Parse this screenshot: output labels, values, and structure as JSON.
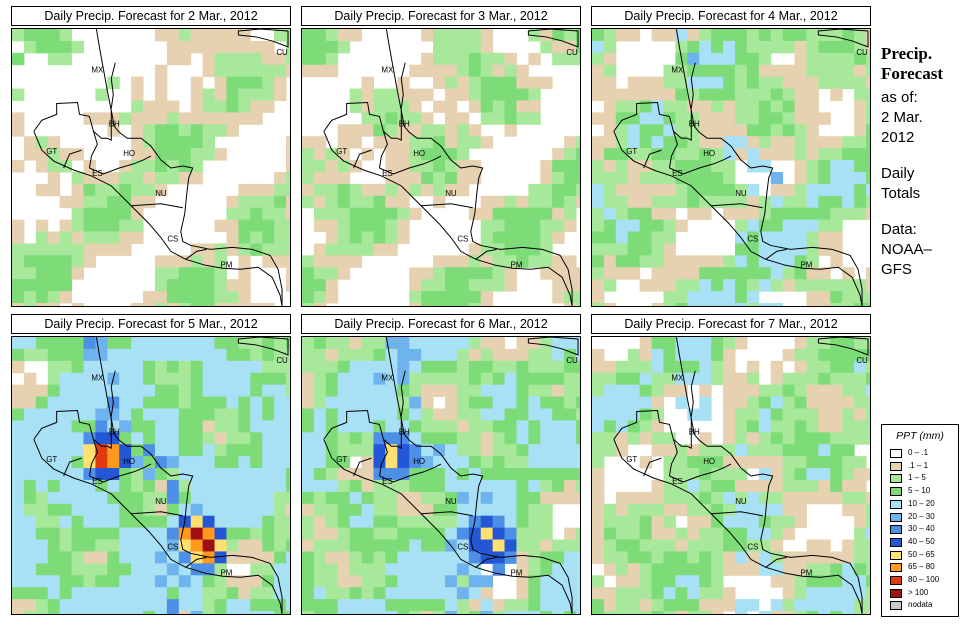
{
  "panels": [
    {
      "title": "Daily Precip. Forecast for  2 Mar., 2012",
      "wet": 0.0
    },
    {
      "title": "Daily Precip. Forecast for  3 Mar., 2012",
      "wet": 0.05
    },
    {
      "title": "Daily Precip. Forecast for  4 Mar., 2012",
      "wet": 0.35
    },
    {
      "title": "Daily Precip. Forecast for  5 Mar., 2012",
      "wet": 0.9
    },
    {
      "title": "Daily Precip. Forecast for  6 Mar., 2012",
      "wet": 0.65
    },
    {
      "title": "Daily Precip. Forecast for  7 Mar., 2012",
      "wet": 0.3
    }
  ],
  "country_labels": [
    "MX",
    "BH",
    "GT",
    "HO",
    "ES",
    "NU",
    "CS",
    "PM",
    "CU"
  ],
  "sidebar": {
    "title": "Precip.\nForecast",
    "asof_label": "as of:",
    "asof_date": "2 Mar.\n2012",
    "totals": "Daily\nTotals",
    "source": "Data:\nNOAA–\nGFS"
  },
  "legend": {
    "title": "PPT (mm)",
    "items": [
      {
        "label": "0 – .1",
        "color": "#ffffff"
      },
      {
        "label": ".1 – 1",
        "color": "#e6d2b0"
      },
      {
        "label": "1 – 5",
        "color": "#a8e89a"
      },
      {
        "label": "5 – 10",
        "color": "#7ddc78"
      },
      {
        "label": "10 – 20",
        "color": "#a8e0f5"
      },
      {
        "label": "20 – 30",
        "color": "#6fb3ee"
      },
      {
        "label": "30 – 40",
        "color": "#4d8fe6"
      },
      {
        "label": "40 – 50",
        "color": "#2457d6"
      },
      {
        "label": "50 – 65",
        "color": "#ffe070"
      },
      {
        "label": "65 – 80",
        "color": "#ff9a1e"
      },
      {
        "label": "80 – 100",
        "color": "#e03a10"
      },
      {
        "label": "> 100",
        "color": "#a01010"
      },
      {
        "label": "nodata",
        "color": "#c8c8c8"
      }
    ]
  }
}
